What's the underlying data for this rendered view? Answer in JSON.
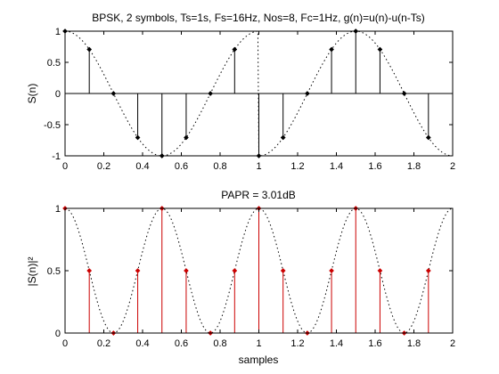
{
  "chart_data": [
    {
      "type": "stem",
      "title": "BPSK, 2 symbols, Ts=1s, Fs=16Hz, Nos=8, Fc=1Hz, g(n)=u(n)-u(n-Ts)",
      "ylabel": "S(n)",
      "xlabel": "",
      "xlim": [
        0,
        2
      ],
      "ylim": [
        -1,
        1
      ],
      "xticks": [
        "0",
        "0.2",
        "0.4",
        "0.6",
        "0.8",
        "1",
        "1.2",
        "1.4",
        "1.6",
        "1.8",
        "2"
      ],
      "yticks": [
        "-1",
        "-0.5",
        "0",
        "0.5",
        "1"
      ],
      "xtick_values": [
        0,
        0.2,
        0.4,
        0.6,
        0.8,
        1,
        1.2,
        1.4,
        1.6,
        1.8,
        2
      ],
      "ytick_values": [
        -1,
        -0.5,
        0,
        0.5,
        1
      ],
      "stem_color": "#000000",
      "x": [
        0,
        0.125,
        0.25,
        0.375,
        0.5,
        0.625,
        0.75,
        0.875,
        1.0,
        1.125,
        1.25,
        1.375,
        1.5,
        1.625,
        1.75,
        1.875
      ],
      "values": [
        1,
        0.7071,
        0,
        -0.7071,
        -1,
        -0.7071,
        0,
        0.7071,
        -1,
        -0.7071,
        0,
        0.7071,
        1,
        0.7071,
        0,
        -0.7071
      ],
      "envelope": "dotted: cos(2*pi*t) on [0,1), -cos(2*pi*t) on [1,2]"
    },
    {
      "type": "stem",
      "title": "PAPR = 3.01dB",
      "ylabel": "|S(n)|²",
      "xlabel": "samples",
      "xlim": [
        0,
        2
      ],
      "ylim": [
        0,
        1
      ],
      "xticks": [
        "0",
        "0.2",
        "0.4",
        "0.6",
        "0.8",
        "1",
        "1.2",
        "1.4",
        "1.6",
        "1.8",
        "2"
      ],
      "yticks": [
        "0",
        "0.5",
        "1"
      ],
      "xtick_values": [
        0,
        0.2,
        0.4,
        0.6,
        0.8,
        1,
        1.2,
        1.4,
        1.6,
        1.8,
        2
      ],
      "ytick_values": [
        0,
        0.5,
        1
      ],
      "stem_color": "#cc0000",
      "x": [
        0,
        0.125,
        0.25,
        0.375,
        0.5,
        0.625,
        0.75,
        0.875,
        1.0,
        1.125,
        1.25,
        1.375,
        1.5,
        1.625,
        1.75,
        1.875
      ],
      "values": [
        1,
        0.5,
        0,
        0.5,
        1,
        0.5,
        0,
        0.5,
        1,
        0.5,
        0,
        0.5,
        1,
        0.5,
        0,
        0.5
      ],
      "envelope": "dotted: cos^2(2*pi*t) on [0,2]"
    }
  ]
}
